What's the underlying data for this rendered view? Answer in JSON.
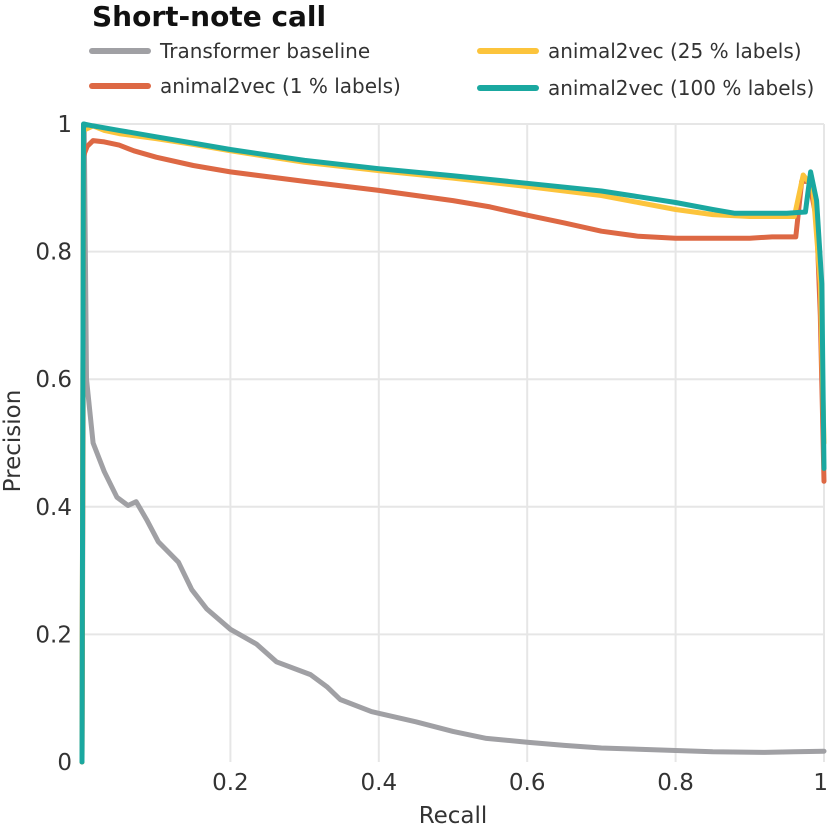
{
  "chart_data": {
    "type": "line",
    "title": "Short-note call",
    "xlabel": "Recall",
    "ylabel": "Precision",
    "xlim": [
      0,
      1
    ],
    "ylim": [
      0,
      1
    ],
    "grid": true,
    "legend_position": "top",
    "xticks": [
      {
        "value": 0.2,
        "label": "0.2"
      },
      {
        "value": 0.4,
        "label": "0.4"
      },
      {
        "value": 0.6,
        "label": "0.6"
      },
      {
        "value": 0.8,
        "label": "0.8"
      },
      {
        "value": 1.0,
        "label": "1"
      }
    ],
    "yticks": [
      {
        "value": 0.0,
        "label": "0"
      },
      {
        "value": 0.2,
        "label": "0.2"
      },
      {
        "value": 0.4,
        "label": "0.4"
      },
      {
        "value": 0.6,
        "label": "0.6"
      },
      {
        "value": 0.8,
        "label": "0.8"
      },
      {
        "value": 1.0,
        "label": "1"
      }
    ],
    "series": [
      {
        "name": "Transformer baseline",
        "color": "#a0a0a4",
        "points": [
          [
            0.0,
            0.0
          ],
          [
            0.003,
            1.0
          ],
          [
            0.006,
            0.6
          ],
          [
            0.015,
            0.5
          ],
          [
            0.03,
            0.455
          ],
          [
            0.047,
            0.415
          ],
          [
            0.062,
            0.402
          ],
          [
            0.073,
            0.408
          ],
          [
            0.087,
            0.38
          ],
          [
            0.103,
            0.345
          ],
          [
            0.13,
            0.313
          ],
          [
            0.148,
            0.27
          ],
          [
            0.168,
            0.24
          ],
          [
            0.2,
            0.208
          ],
          [
            0.235,
            0.185
          ],
          [
            0.262,
            0.157
          ],
          [
            0.308,
            0.137
          ],
          [
            0.33,
            0.118
          ],
          [
            0.348,
            0.098
          ],
          [
            0.39,
            0.079
          ],
          [
            0.45,
            0.063
          ],
          [
            0.5,
            0.048
          ],
          [
            0.545,
            0.037
          ],
          [
            0.6,
            0.031
          ],
          [
            0.65,
            0.026
          ],
          [
            0.7,
            0.022
          ],
          [
            0.8,
            0.018
          ],
          [
            0.85,
            0.016
          ],
          [
            0.92,
            0.015
          ],
          [
            0.96,
            0.016
          ],
          [
            1.0,
            0.017
          ]
        ]
      },
      {
        "name": "animal2vec (1 % labels)",
        "color": "#dd6844",
        "points": [
          [
            0.0,
            0.0
          ],
          [
            0.002,
            0.95
          ],
          [
            0.007,
            0.965
          ],
          [
            0.015,
            0.974
          ],
          [
            0.03,
            0.972
          ],
          [
            0.05,
            0.967
          ],
          [
            0.07,
            0.958
          ],
          [
            0.1,
            0.948
          ],
          [
            0.15,
            0.935
          ],
          [
            0.2,
            0.925
          ],
          [
            0.3,
            0.91
          ],
          [
            0.4,
            0.896
          ],
          [
            0.5,
            0.88
          ],
          [
            0.55,
            0.87
          ],
          [
            0.6,
            0.857
          ],
          [
            0.65,
            0.845
          ],
          [
            0.7,
            0.832
          ],
          [
            0.75,
            0.824
          ],
          [
            0.8,
            0.821
          ],
          [
            0.85,
            0.821
          ],
          [
            0.9,
            0.821
          ],
          [
            0.93,
            0.823
          ],
          [
            0.962,
            0.823
          ],
          [
            0.97,
            0.91
          ],
          [
            0.98,
            0.91
          ],
          [
            0.99,
            0.85
          ],
          [
            0.995,
            0.7
          ],
          [
            1.0,
            0.44
          ]
        ]
      },
      {
        "name": "animal2vec (25 % labels)",
        "color": "#fcc43c",
        "points": [
          [
            0.0,
            0.0
          ],
          [
            0.002,
            0.99
          ],
          [
            0.015,
            0.997
          ],
          [
            0.03,
            0.99
          ],
          [
            0.05,
            0.985
          ],
          [
            0.1,
            0.977
          ],
          [
            0.15,
            0.968
          ],
          [
            0.2,
            0.958
          ],
          [
            0.3,
            0.94
          ],
          [
            0.4,
            0.927
          ],
          [
            0.5,
            0.915
          ],
          [
            0.6,
            0.902
          ],
          [
            0.7,
            0.888
          ],
          [
            0.75,
            0.877
          ],
          [
            0.8,
            0.866
          ],
          [
            0.85,
            0.858
          ],
          [
            0.9,
            0.855
          ],
          [
            0.96,
            0.855
          ],
          [
            0.972,
            0.92
          ],
          [
            0.985,
            0.9
          ],
          [
            0.995,
            0.75
          ],
          [
            1.0,
            0.5
          ]
        ]
      },
      {
        "name": "animal2vec (100 % labels)",
        "color": "#1aa8a0",
        "points": [
          [
            0.0,
            0.0
          ],
          [
            0.002,
            1.0
          ],
          [
            0.015,
            0.997
          ],
          [
            0.03,
            0.994
          ],
          [
            0.05,
            0.99
          ],
          [
            0.1,
            0.98
          ],
          [
            0.15,
            0.97
          ],
          [
            0.2,
            0.96
          ],
          [
            0.3,
            0.943
          ],
          [
            0.4,
            0.93
          ],
          [
            0.5,
            0.919
          ],
          [
            0.6,
            0.907
          ],
          [
            0.7,
            0.895
          ],
          [
            0.75,
            0.886
          ],
          [
            0.8,
            0.877
          ],
          [
            0.85,
            0.866
          ],
          [
            0.88,
            0.86
          ],
          [
            0.95,
            0.86
          ],
          [
            0.975,
            0.862
          ],
          [
            0.982,
            0.925
          ],
          [
            0.99,
            0.88
          ],
          [
            0.997,
            0.75
          ],
          [
            1.0,
            0.46
          ]
        ]
      }
    ]
  }
}
